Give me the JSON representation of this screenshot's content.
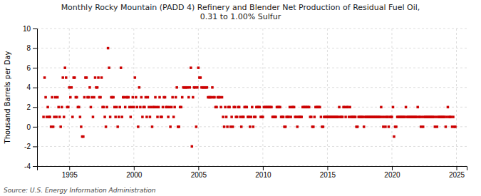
{
  "chart_data": {
    "type": "scatter",
    "title": "Monthly Rocky Mountain (PADD 4) Refinery and Blender Net Production of Residual Fuel Oil,\n0.31 to 1.00% Sulfur",
    "y_label": "Thousand Barrels per Day",
    "source": "Source: U.S. Energy Information Administration",
    "color": "#cc0000",
    "marker": "square",
    "grid": true,
    "xlim": [
      1992.5,
      2025.8
    ],
    "xticks": [
      1995,
      2000,
      2005,
      2010,
      2015,
      2020,
      2025
    ],
    "ylim": [
      -4,
      10
    ],
    "yticks": [
      -4,
      -2,
      0,
      2,
      4,
      6,
      8,
      10
    ],
    "x": [
      1993.0,
      1993.083,
      1993.167,
      1993.25,
      1993.333,
      1993.417,
      1993.5,
      1993.583,
      1993.667,
      1993.75,
      1993.833,
      1993.917,
      1994.0,
      1994.083,
      1994.167,
      1994.25,
      1994.333,
      1994.417,
      1994.5,
      1994.583,
      1994.667,
      1994.75,
      1994.833,
      1994.917,
      1995.0,
      1995.083,
      1995.167,
      1995.25,
      1995.333,
      1995.417,
      1995.5,
      1995.583,
      1995.667,
      1995.75,
      1995.833,
      1995.917,
      1996.0,
      1996.083,
      1996.167,
      1996.25,
      1996.333,
      1996.417,
      1996.5,
      1996.583,
      1996.667,
      1996.75,
      1996.833,
      1996.917,
      1997.0,
      1997.083,
      1997.167,
      1997.25,
      1997.333,
      1997.417,
      1997.5,
      1997.583,
      1997.667,
      1997.75,
      1997.833,
      1997.917,
      1998.0,
      1998.083,
      1998.167,
      1998.25,
      1998.333,
      1998.417,
      1998.5,
      1998.583,
      1998.667,
      1998.75,
      1998.833,
      1998.917,
      1999.0,
      1999.083,
      1999.167,
      1999.25,
      1999.333,
      1999.417,
      1999.5,
      1999.583,
      1999.667,
      1999.75,
      1999.833,
      1999.917,
      2000.0,
      2000.083,
      2000.167,
      2000.25,
      2000.333,
      2000.417,
      2000.5,
      2000.583,
      2000.667,
      2000.75,
      2000.833,
      2000.917,
      2001.0,
      2001.083,
      2001.167,
      2001.25,
      2001.333,
      2001.417,
      2001.5,
      2001.583,
      2001.667,
      2001.75,
      2001.833,
      2001.917,
      2002.0,
      2002.083,
      2002.167,
      2002.25,
      2002.333,
      2002.417,
      2002.5,
      2002.583,
      2002.667,
      2002.75,
      2002.833,
      2002.917,
      2003.0,
      2003.083,
      2003.167,
      2003.25,
      2003.333,
      2003.417,
      2003.5,
      2003.583,
      2003.667,
      2003.75,
      2003.833,
      2003.917,
      2004.0,
      2004.083,
      2004.167,
      2004.25,
      2004.333,
      2004.417,
      2004.5,
      2004.583,
      2004.667,
      2004.75,
      2004.833,
      2004.917,
      2005.0,
      2005.083,
      2005.167,
      2005.25,
      2005.333,
      2005.417,
      2005.5,
      2005.583,
      2005.667,
      2005.75,
      2005.833,
      2005.917,
      2006.0,
      2006.083,
      2006.167,
      2006.25,
      2006.333,
      2006.417,
      2006.5,
      2006.583,
      2006.667,
      2006.75,
      2006.833,
      2006.917,
      2007.0,
      2007.083,
      2007.167,
      2007.25,
      2007.333,
      2007.417,
      2007.5,
      2007.583,
      2007.667,
      2007.75,
      2007.833,
      2007.917,
      2008.0,
      2008.083,
      2008.167,
      2008.25,
      2008.333,
      2008.417,
      2008.5,
      2008.583,
      2008.667,
      2008.75,
      2008.833,
      2008.917,
      2009.0,
      2009.083,
      2009.167,
      2009.25,
      2009.333,
      2009.417,
      2009.5,
      2009.583,
      2009.667,
      2009.75,
      2009.833,
      2009.917,
      2010.0,
      2010.083,
      2010.167,
      2010.25,
      2010.333,
      2010.417,
      2010.5,
      2010.583,
      2010.667,
      2010.75,
      2010.833,
      2010.917,
      2011.0,
      2011.083,
      2011.167,
      2011.25,
      2011.333,
      2011.417,
      2011.5,
      2011.583,
      2011.667,
      2011.75,
      2011.833,
      2011.917,
      2012.0,
      2012.083,
      2012.167,
      2012.25,
      2012.333,
      2012.417,
      2012.5,
      2012.583,
      2012.667,
      2012.75,
      2012.833,
      2012.917,
      2013.0,
      2013.083,
      2013.167,
      2013.25,
      2013.333,
      2013.417,
      2013.5,
      2013.583,
      2013.667,
      2013.75,
      2013.833,
      2013.917,
      2014.0,
      2014.083,
      2014.167,
      2014.25,
      2014.333,
      2014.417,
      2014.5,
      2014.583,
      2014.667,
      2014.75,
      2014.833,
      2014.917,
      2015.0,
      2015.083,
      2015.167,
      2015.25,
      2015.333,
      2015.417,
      2015.5,
      2015.583,
      2015.667,
      2015.75,
      2015.833,
      2015.917,
      2016.0,
      2016.083,
      2016.167,
      2016.25,
      2016.333,
      2016.417,
      2016.5,
      2016.583,
      2016.667,
      2016.75,
      2016.833,
      2016.917,
      2017.0,
      2017.083,
      2017.167,
      2017.25,
      2017.333,
      2017.417,
      2017.5,
      2017.583,
      2017.667,
      2017.75,
      2017.833,
      2017.917,
      2018.0,
      2018.083,
      2018.167,
      2018.25,
      2018.333,
      2018.417,
      2018.5,
      2018.583,
      2018.667,
      2018.75,
      2018.833,
      2018.917,
      2019.0,
      2019.083,
      2019.167,
      2019.25,
      2019.333,
      2019.417,
      2019.5,
      2019.583,
      2019.667,
      2019.75,
      2019.833,
      2019.917,
      2020.0,
      2020.083,
      2020.167,
      2020.25,
      2020.333,
      2020.417,
      2020.5,
      2020.583,
      2020.667,
      2020.75,
      2020.833,
      2020.917,
      2021.0,
      2021.083,
      2021.167,
      2021.25,
      2021.333,
      2021.417,
      2021.5,
      2021.583,
      2021.667,
      2021.75,
      2021.833,
      2021.917,
      2022.0,
      2022.083,
      2022.167,
      2022.25,
      2022.333,
      2022.417,
      2022.5,
      2022.583,
      2022.667,
      2022.75,
      2022.833,
      2022.917,
      2023.0,
      2023.083,
      2023.167,
      2023.25,
      2023.333,
      2023.417,
      2023.5,
      2023.583,
      2023.667,
      2023.75,
      2023.833,
      2023.917,
      2024.0,
      2024.083,
      2024.167,
      2024.25,
      2024.333,
      2024.417,
      2024.5,
      2024.583,
      2024.667,
      2024.75,
      2024.833,
      2024.917
    ],
    "values": [
      1,
      5,
      3,
      1,
      2,
      1,
      1,
      0,
      3,
      0,
      1,
      3,
      1,
      3,
      2,
      1,
      0,
      2,
      5,
      1,
      6,
      5,
      2,
      2,
      4,
      3,
      4,
      1,
      5,
      5,
      3,
      3,
      2,
      2,
      1,
      0,
      -1,
      -1,
      3,
      5,
      5,
      3,
      3,
      4,
      2,
      3,
      1,
      3,
      5,
      4,
      4,
      5,
      3,
      3,
      5,
      2,
      2,
      1,
      0,
      2,
      8,
      6,
      1,
      3,
      3,
      3,
      2,
      1,
      2,
      0,
      1,
      2,
      6,
      1,
      3,
      3,
      2,
      3,
      3,
      3,
      2,
      1,
      2,
      3,
      2,
      5,
      3,
      2,
      0,
      4,
      2,
      3,
      1,
      2,
      2,
      3,
      1,
      3,
      2,
      1,
      2,
      0,
      2,
      2,
      3,
      2,
      1,
      2,
      3,
      1,
      1,
      2,
      3,
      3,
      2,
      2,
      1,
      2,
      0,
      2,
      3,
      1,
      2,
      3,
      4,
      0,
      0,
      2,
      2,
      3,
      4,
      4,
      4,
      4,
      4,
      3,
      4,
      6,
      -2,
      3,
      4,
      4,
      0,
      4,
      6,
      5,
      5,
      4,
      4,
      4,
      4,
      4,
      4,
      3,
      3,
      3,
      3,
      4,
      3,
      3,
      2,
      2,
      3,
      3,
      3,
      2,
      3,
      1,
      0,
      2,
      1,
      0,
      2,
      2,
      0,
      1,
      0,
      2,
      2,
      1,
      1,
      2,
      2,
      1,
      0,
      1,
      1,
      2,
      2,
      2,
      1,
      1,
      0,
      1,
      2,
      0,
      1,
      1,
      2,
      2,
      2,
      2,
      1,
      1,
      1,
      2,
      2,
      2,
      2,
      2,
      2,
      2,
      2,
      1,
      1,
      1,
      1,
      2,
      2,
      2,
      2,
      1,
      1,
      1,
      0,
      0,
      1,
      1,
      1,
      2,
      1,
      2,
      2,
      2,
      1,
      1,
      0,
      1,
      1,
      1,
      1,
      2,
      2,
      2,
      2,
      2,
      2,
      2,
      1,
      1,
      0,
      0,
      1,
      2,
      2,
      2,
      2,
      2,
      1,
      0,
      0,
      1,
      1,
      1,
      1,
      1,
      1,
      1,
      1,
      1,
      1,
      1,
      1,
      1,
      1,
      2,
      1,
      1,
      1,
      2,
      2,
      1,
      2,
      2,
      1,
      2,
      1,
      1,
      1,
      1,
      1,
      0,
      0,
      1,
      1,
      1,
      1,
      1,
      0,
      1,
      1,
      1,
      1,
      1,
      1,
      1,
      1,
      1,
      1,
      1,
      1,
      1,
      1,
      1,
      2,
      1,
      0,
      1,
      0,
      1,
      1,
      0,
      1,
      1,
      1,
      2,
      -1,
      0,
      0,
      1,
      1,
      1,
      1,
      1,
      1,
      1,
      1,
      2,
      1,
      1,
      1,
      1,
      1,
      1,
      1,
      1,
      1,
      1,
      2,
      1,
      1,
      0,
      1,
      0,
      1,
      1,
      1,
      1,
      1,
      1,
      1,
      1,
      1,
      1,
      0,
      1,
      0,
      1,
      1,
      1,
      1,
      1,
      1,
      1,
      0,
      1,
      2,
      1,
      1,
      1,
      0,
      1,
      0,
      0
    ]
  }
}
